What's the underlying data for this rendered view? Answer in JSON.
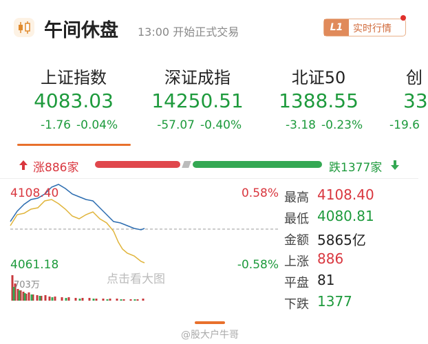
{
  "header": {
    "title": "午间休盘",
    "subtitle": "13:00 开始正式交易",
    "badge_level": "L1",
    "badge_text": "实时行情"
  },
  "indices": [
    {
      "name": "上证指数",
      "value": "4083.03",
      "change": "-1.76",
      "pct": "-0.04%"
    },
    {
      "name": "深证成指",
      "value": "14250.51",
      "change": "-57.07",
      "pct": "-0.40%"
    },
    {
      "name": "北证50",
      "value": "1388.55",
      "change": "-3.18",
      "pct": "-0.23%"
    },
    {
      "name": "创",
      "value": "33",
      "change": "-19.6",
      "pct": ""
    }
  ],
  "breadth": {
    "up": "涨886家",
    "down": "跌1377家"
  },
  "chart": {
    "high_label": "4108.40",
    "low_label": "4061.18",
    "high_pct": "0.58%",
    "low_pct": "-0.58%",
    "volume_label": "703万",
    "hint": "点击看大图"
  },
  "stats": [
    {
      "label": "最高",
      "value": "4108.40"
    },
    {
      "label": "最低",
      "value": "4080.81"
    },
    {
      "label": "金额",
      "value": "5865亿"
    },
    {
      "label": "上涨",
      "value": "886"
    },
    {
      "label": "平盘",
      "value": "81"
    },
    {
      "label": "下跌",
      "value": "1377"
    }
  ],
  "footer": {
    "watermark": "@股大户牛哥"
  }
}
